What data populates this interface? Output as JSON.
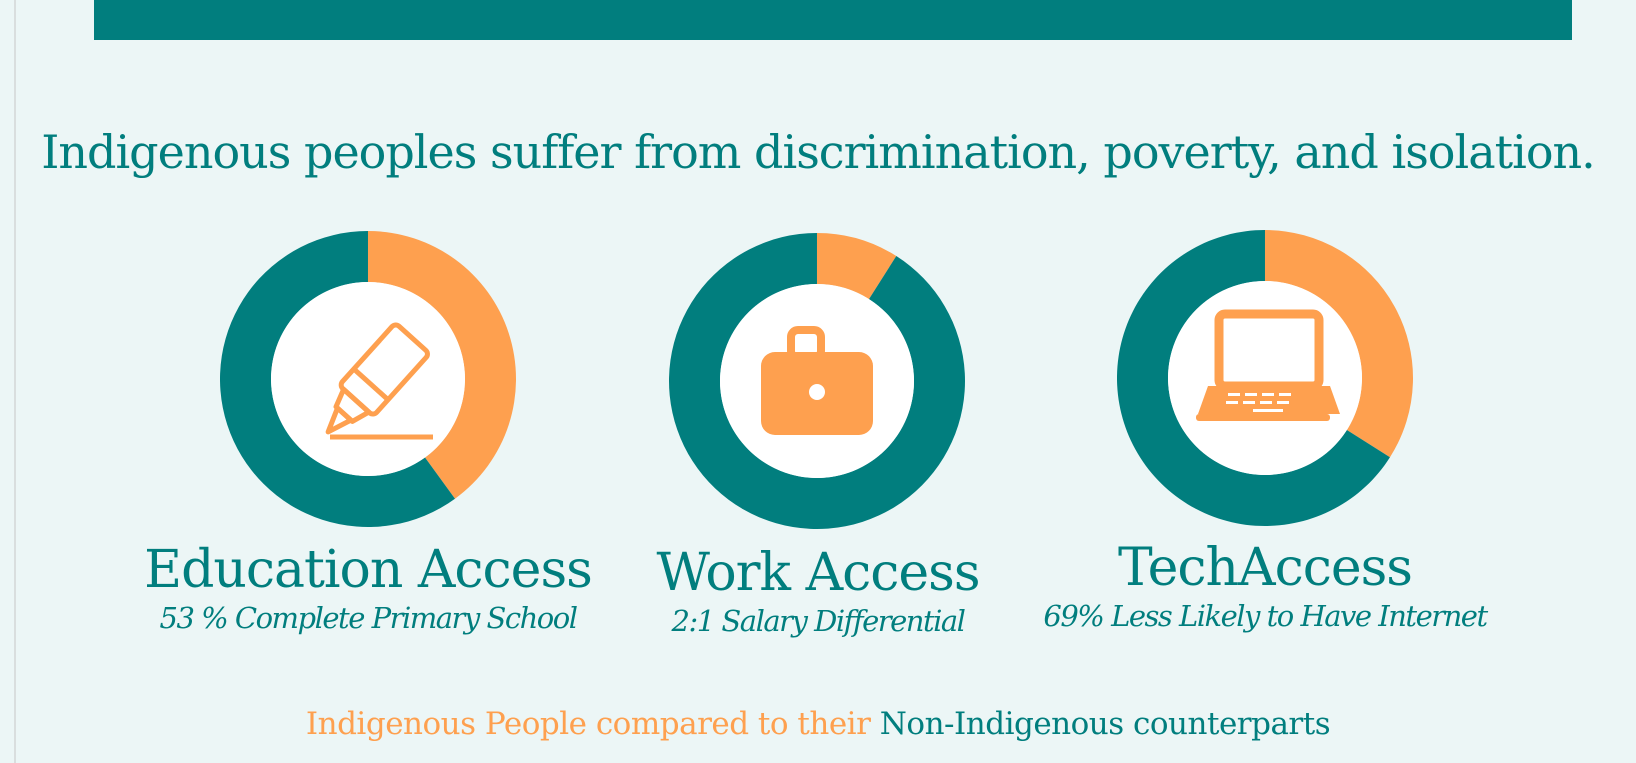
{
  "headline": "Indigenous peoples suffer from discrimination, poverty, and isolation.",
  "colors": {
    "teal": "#017e7e",
    "orange": "#fea04f",
    "background": "#ecf6f6"
  },
  "icons": [
    "highlighter-icon",
    "briefcase-icon",
    "laptop-icon"
  ],
  "legend": {
    "indigenous": "Indigenous People compared to their",
    "non_indigenous": "Non-Indigenous counterparts"
  },
  "chart_data": [
    {
      "type": "pie",
      "title": "Education Access",
      "subtitle": "53 %  Complete Primary School",
      "categories": [
        "Indigenous People",
        "Non-Indigenous counterparts"
      ],
      "values": [
        40,
        60
      ]
    },
    {
      "type": "pie",
      "title": "Work Access",
      "subtitle": "2:1 Salary  Differential",
      "categories": [
        "Indigenous People",
        "Non-Indigenous counterparts"
      ],
      "values": [
        9,
        91
      ]
    },
    {
      "type": "pie",
      "title": "TechAccess",
      "subtitle": "69%  Less Likely to Have Internet",
      "categories": [
        "Indigenous People",
        "Non-Indigenous counterparts"
      ],
      "values": [
        34,
        66
      ]
    }
  ]
}
